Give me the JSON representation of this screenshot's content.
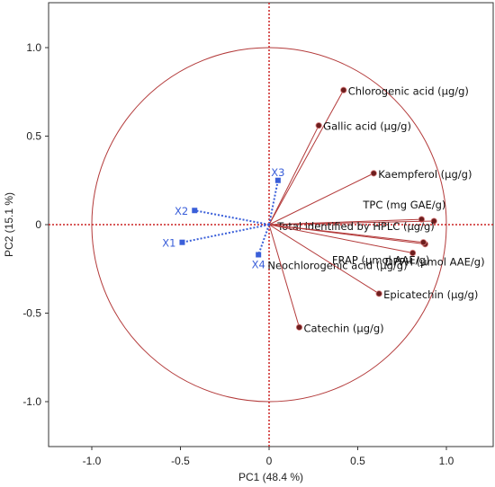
{
  "chart_data": {
    "type": "scatter",
    "subtype": "pca-correlation-biplot",
    "title": "",
    "xlabel": "PC1  (48.4 %)",
    "ylabel": "PC2  (15.1 %)",
    "xlim": [
      -1.25,
      1.25
    ],
    "ylim": [
      -1.25,
      1.25
    ],
    "x_ticks": [
      -1.0,
      -0.5,
      0,
      0.5,
      1.0
    ],
    "x_tick_labels": [
      "-1.0",
      "-0.5",
      "0",
      "0.5",
      "1.0"
    ],
    "y_ticks": [
      -1.0,
      -0.5,
      0,
      0.5,
      1.0
    ],
    "y_tick_labels": [
      "-1.0",
      "-0.5",
      "0",
      "0.5",
      "1.0"
    ],
    "grid": false,
    "correlation_circle_radius": 1.0,
    "colors": {
      "active": "#b33a3a",
      "supplementary": "#3a5fd9",
      "axis": "#cc2222",
      "marker": "#6e1e1e"
    },
    "active_variables": [
      {
        "label": "Chlorogenic acid (μg/g)",
        "x": 0.42,
        "y": 0.76
      },
      {
        "label": "Gallic acid (μg/g)",
        "x": 0.28,
        "y": 0.56
      },
      {
        "label": "Kaempferol (μg/g)",
        "x": 0.59,
        "y": 0.29
      },
      {
        "label": "TPC (mg GAE/g)",
        "x": 0.86,
        "y": 0.03
      },
      {
        "label": "Total identified by HPLC (μg/g)",
        "x": 0.93,
        "y": 0.02
      },
      {
        "label": "FRAP (μmol AAE/g)",
        "x": 0.88,
        "y": -0.11
      },
      {
        "label": "Neochlorogenic acid (μg/g)",
        "x": 0.87,
        "y": -0.1
      },
      {
        "label": "DPPH (μmol AAE/g)",
        "x": 0.81,
        "y": -0.16
      },
      {
        "label": "Epicatechin (μg/g)",
        "x": 0.62,
        "y": -0.39
      },
      {
        "label": "Catechin (μg/g)",
        "x": 0.17,
        "y": -0.58
      }
    ],
    "supplementary_variables": [
      {
        "label": "X1",
        "x": -0.49,
        "y": -0.1
      },
      {
        "label": "X2",
        "x": -0.42,
        "y": 0.08
      },
      {
        "label": "X3",
        "x": 0.05,
        "y": 0.25
      },
      {
        "label": "X4",
        "x": -0.06,
        "y": -0.17
      }
    ]
  }
}
